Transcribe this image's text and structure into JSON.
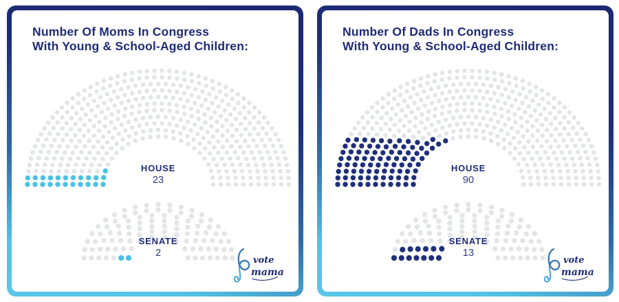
{
  "cards": [
    {
      "title_line1": "Number Of Moms In Congress",
      "title_line2": "With Young & School-Aged Children:",
      "accent_color": "#49c2e5"
    },
    {
      "title_line1": "Number Of Dads In Congress",
      "title_line2": "With Young & School-Aged Children:",
      "accent_color": "#1f2f7b"
    }
  ],
  "colors": {
    "seat_default": "#e4e5e7",
    "navy": "#1f2b77",
    "cyan": "#49c2e5",
    "value_text": "#2b3b82"
  },
  "logo": {
    "word1": "vote",
    "word2": "mama"
  },
  "chart_data": [
    {
      "type": "parliament",
      "group": "moms",
      "chamber_label": "HOUSE",
      "value_label": "23",
      "total_seats": 435,
      "highlighted": 23,
      "rows": 11
    },
    {
      "type": "parliament",
      "group": "moms",
      "chamber_label": "SENATE",
      "value_label": "2",
      "total_seats": 100,
      "highlighted": 2,
      "rows": 7
    },
    {
      "type": "parliament",
      "group": "dads",
      "chamber_label": "HOUSE",
      "value_label": "90",
      "total_seats": 435,
      "highlighted": 90,
      "rows": 11
    },
    {
      "type": "parliament",
      "group": "dads",
      "chamber_label": "SENATE",
      "value_label": "13",
      "total_seats": 100,
      "highlighted": 13,
      "rows": 7
    }
  ]
}
